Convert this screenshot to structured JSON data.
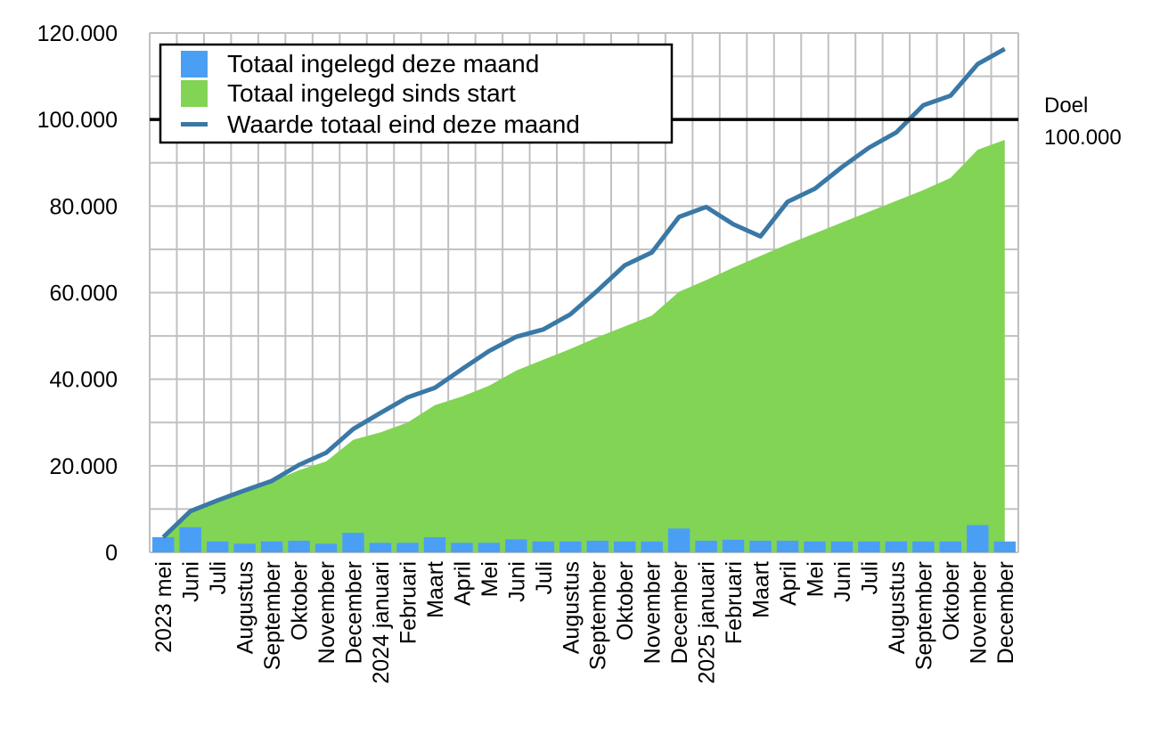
{
  "chart_data": {
    "type": "bar+area+line",
    "categories": [
      "2023 mei",
      "Juni",
      "Juli",
      "Augustus",
      "September",
      "Oktober",
      "November",
      "December",
      "2024 januari",
      "Februari",
      "Maart",
      "April",
      "Mei",
      "Juni",
      "Juli",
      "Augustus",
      "September",
      "Oktober",
      "November",
      "December",
      "2025 januari",
      "Februari",
      "Maart",
      "April",
      "Mei",
      "Juni",
      "Juli",
      "Augustus",
      "September",
      "Oktober",
      "November",
      "December"
    ],
    "series": [
      {
        "name": "Totaal ingelegd deze maand",
        "type": "bar",
        "color": "#4a9ff5",
        "values": [
          3500,
          5800,
          2500,
          2000,
          2500,
          2700,
          2000,
          4500,
          2200,
          2200,
          3500,
          2200,
          2200,
          3000,
          2500,
          2500,
          2700,
          2500,
          2500,
          5500,
          2700,
          2900,
          2700,
          2700,
          2500,
          2500,
          2500,
          2500,
          2500,
          2500,
          6300,
          2500
        ]
      },
      {
        "name": "Totaal ingelegd sinds start",
        "type": "area",
        "color": "#82d454",
        "values": [
          3500,
          9300,
          11800,
          13800,
          16300,
          19000,
          21000,
          26000,
          27700,
          30000,
          34000,
          36000,
          38500,
          42000,
          44500,
          47000,
          49700,
          52200,
          54700,
          60200,
          62900,
          65800,
          68500,
          71200,
          73700,
          76200,
          78700,
          81200,
          83700,
          86500,
          93000,
          95300
        ]
      },
      {
        "name": "Waarde totaal eind deze maand",
        "type": "line",
        "color": "#3a78a6",
        "values": [
          3500,
          9500,
          12000,
          14300,
          16500,
          20200,
          23000,
          28500,
          32200,
          35800,
          38000,
          42300,
          46500,
          49800,
          51500,
          55000,
          60500,
          66300,
          69300,
          77500,
          79800,
          75800,
          73000,
          81000,
          84000,
          89000,
          93500,
          97000,
          103300,
          105500,
          112800,
          116300
        ]
      }
    ],
    "ylim": [
      0,
      120000
    ],
    "yticks": [
      "0",
      "20.000",
      "40.000",
      "60.000",
      "80.000",
      "100.000",
      "120.000"
    ],
    "ytick_values": [
      0,
      20000,
      40000,
      60000,
      80000,
      100000,
      120000
    ],
    "grid": true,
    "legend": "top-left",
    "reference_line": {
      "value": 100000,
      "label_line1": "Doel",
      "label_line2": "100.000",
      "color": "#000000"
    }
  }
}
